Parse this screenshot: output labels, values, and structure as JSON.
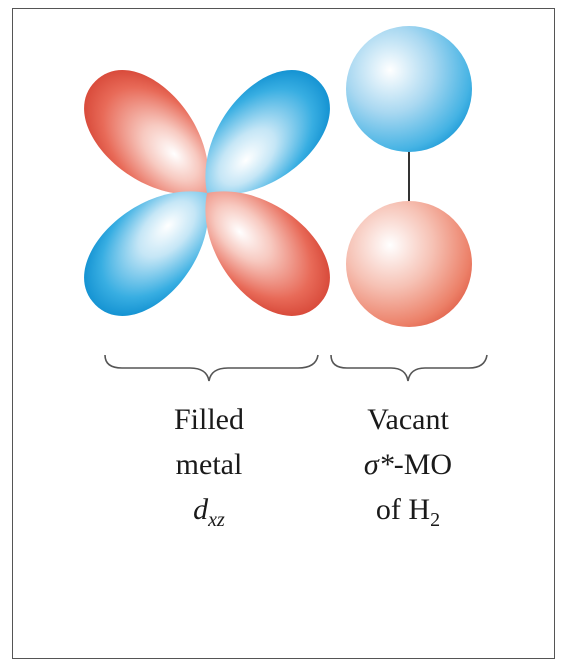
{
  "left_group": {
    "line1": "Filled",
    "line2": "metal",
    "symbol": "d",
    "subscript": "xz"
  },
  "right_group": {
    "line1": "Vacant",
    "line2_symbol": "σ*",
    "line2_rest": "-MO",
    "line3_prefix": "of H",
    "line3_subscript": "2"
  },
  "colors": {
    "positive_lobe": "#e05a4a",
    "negative_lobe": "#1f9ed8",
    "bond_line": "#333333",
    "brace": "#555555",
    "frame": "#555555"
  }
}
